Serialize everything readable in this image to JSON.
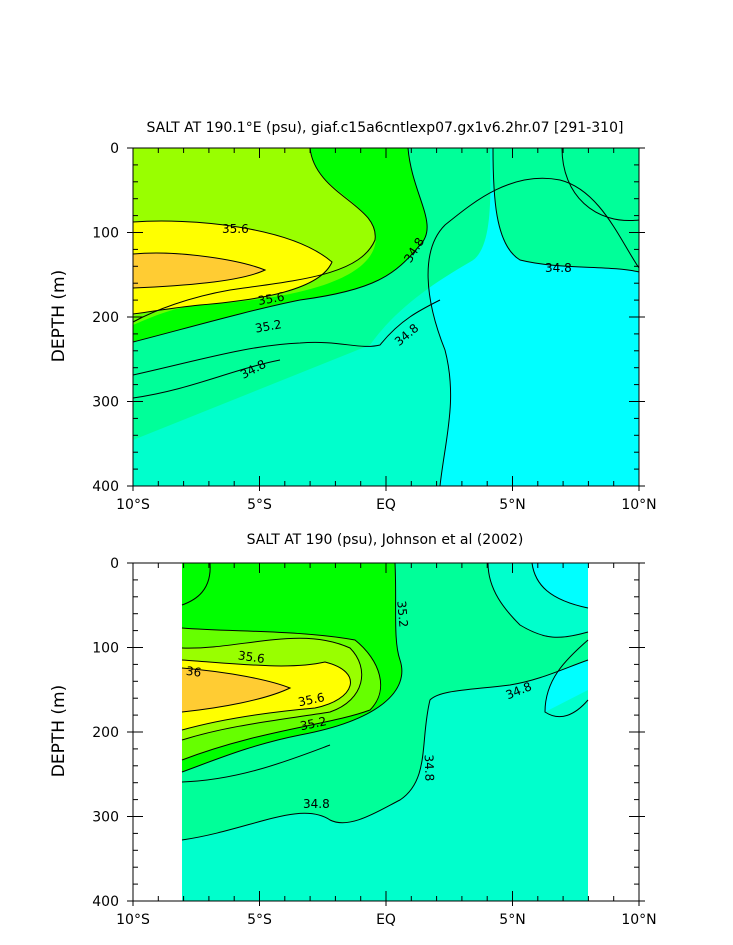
{
  "palette": {
    "cyan": "#00ffff",
    "aqua": "#00ffcc",
    "seagreen": "#00ff99",
    "green": "#00ff00",
    "lime": "#66ff00",
    "chartreuse": "#99ff00",
    "yellow": "#ffff00",
    "gold": "#ffcc33"
  },
  "chart_data": [
    {
      "type": "contour",
      "title": "SALT AT 190.1°E (psu), giaf.c15a6cntlexp07.gx1v6.2hr.07 [291-310]",
      "ylabel": "DEPTH (m)",
      "xlim": [
        -10,
        10
      ],
      "ylim": [
        400,
        0
      ],
      "x_ticks": [
        -10,
        -5,
        0,
        5,
        10
      ],
      "x_tick_labels": [
        "10°S",
        "5°S",
        "EQ",
        "5°N",
        "10°N"
      ],
      "y_ticks": [
        0,
        100,
        200,
        300,
        400
      ],
      "y_tick_labels": [
        "0",
        "100",
        "200",
        "300",
        "400"
      ],
      "contour_labels": [
        "35.6",
        "35.2",
        "34.8",
        "35.6",
        "35.2",
        "34.8",
        "34.8"
      ]
    },
    {
      "type": "contour",
      "title": "SALT AT 190 (psu), Johnson et al (2002)",
      "ylabel": "DEPTH (m)",
      "xlim": [
        -10,
        10
      ],
      "ylim": [
        400,
        0
      ],
      "data_x_range": [
        -8,
        8
      ],
      "x_ticks": [
        -10,
        -5,
        0,
        5,
        10
      ],
      "x_tick_labels": [
        "10°S",
        "5°S",
        "EQ",
        "5°N",
        "10°N"
      ],
      "y_ticks": [
        0,
        100,
        200,
        300,
        400
      ],
      "y_tick_labels": [
        "0",
        "100",
        "200",
        "300",
        "400"
      ],
      "contour_labels": [
        "35.2",
        "35.6",
        "36",
        "35.6",
        "35.2",
        "34.8",
        "34.8",
        "34.8"
      ]
    }
  ]
}
